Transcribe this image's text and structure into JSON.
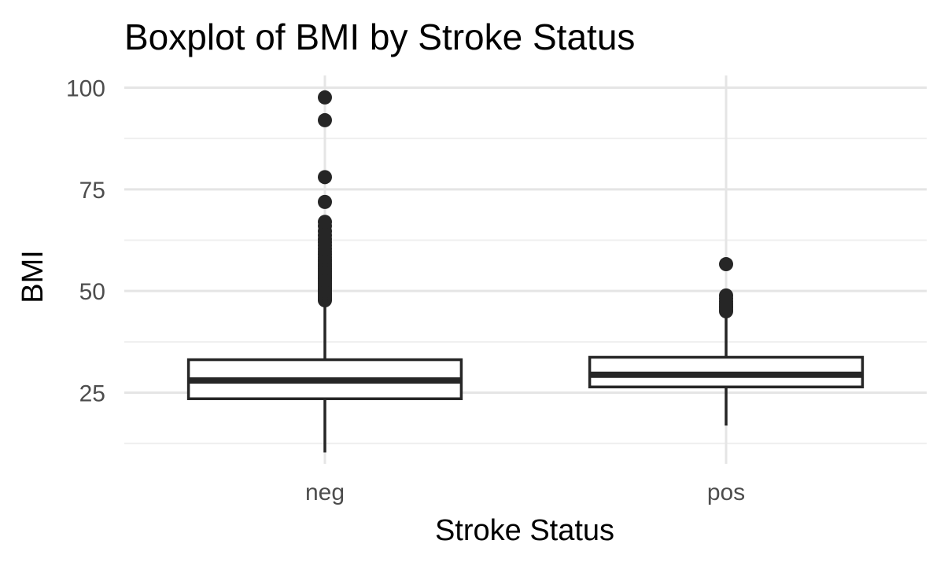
{
  "chart_data": {
    "type": "boxplot",
    "title": "Boxplot of BMI by Stroke Status",
    "xlabel": "Stroke Status",
    "ylabel": "BMI",
    "categories": [
      "neg",
      "pos"
    ],
    "ylim": [
      7.5,
      103
    ],
    "y_ticks": [
      25,
      50,
      75,
      100
    ],
    "y_tick_labels": [
      "25",
      "50",
      "75",
      "100"
    ],
    "y_minor_ticks": [
      12.5,
      37.5,
      62.5,
      87.5
    ],
    "grid": true,
    "boxes": [
      {
        "category": "neg",
        "whisker_low": 10.3,
        "q1": 23.5,
        "median": 28.0,
        "q3": 33.1,
        "whisker_high": 47.5,
        "outliers": [
          47.7,
          48.0,
          48.3,
          48.6,
          49.0,
          49.3,
          49.6,
          50.0,
          50.3,
          50.6,
          51.0,
          51.4,
          51.8,
          52.2,
          52.6,
          53.0,
          53.4,
          53.8,
          54.2,
          54.7,
          55.1,
          55.6,
          56.1,
          56.6,
          57.2,
          57.7,
          58.3,
          59.0,
          59.7,
          60.4,
          61.2,
          62.0,
          62.8,
          63.7,
          64.7,
          66.0,
          67.0,
          71.9,
          78.0,
          92.0,
          97.6
        ]
      },
      {
        "category": "pos",
        "whisker_low": 16.9,
        "q1": 26.4,
        "median": 29.4,
        "q3": 33.7,
        "whisker_high": 44.9,
        "outliers": [
          45.0,
          45.4,
          45.9,
          46.3,
          46.8,
          47.4,
          48.2,
          48.9,
          56.6
        ]
      }
    ]
  }
}
